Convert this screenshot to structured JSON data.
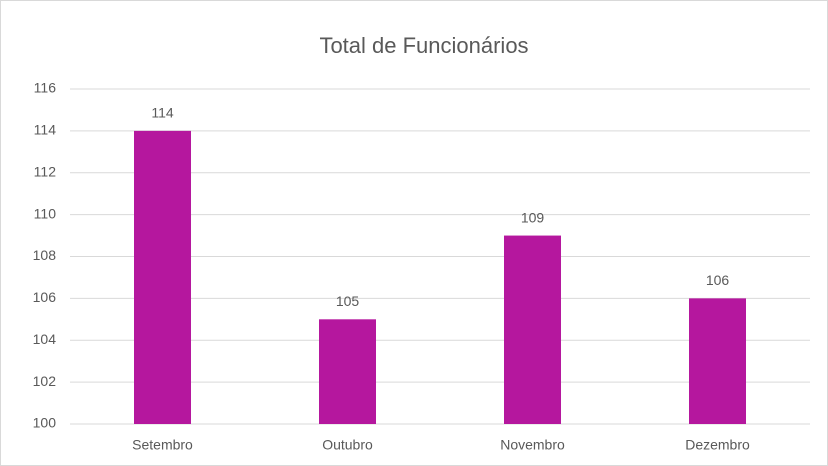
{
  "chart_data": {
    "type": "bar",
    "title": "Total de Funcionários",
    "categories": [
      "Setembro",
      "Outubro",
      "Novembro",
      "Dezembro"
    ],
    "values": [
      114,
      105,
      109,
      106
    ],
    "color": "#b5179e",
    "ylim": [
      100,
      116
    ],
    "yticks": [
      100,
      102,
      104,
      106,
      108,
      110,
      112,
      114,
      116
    ],
    "grid": true
  }
}
